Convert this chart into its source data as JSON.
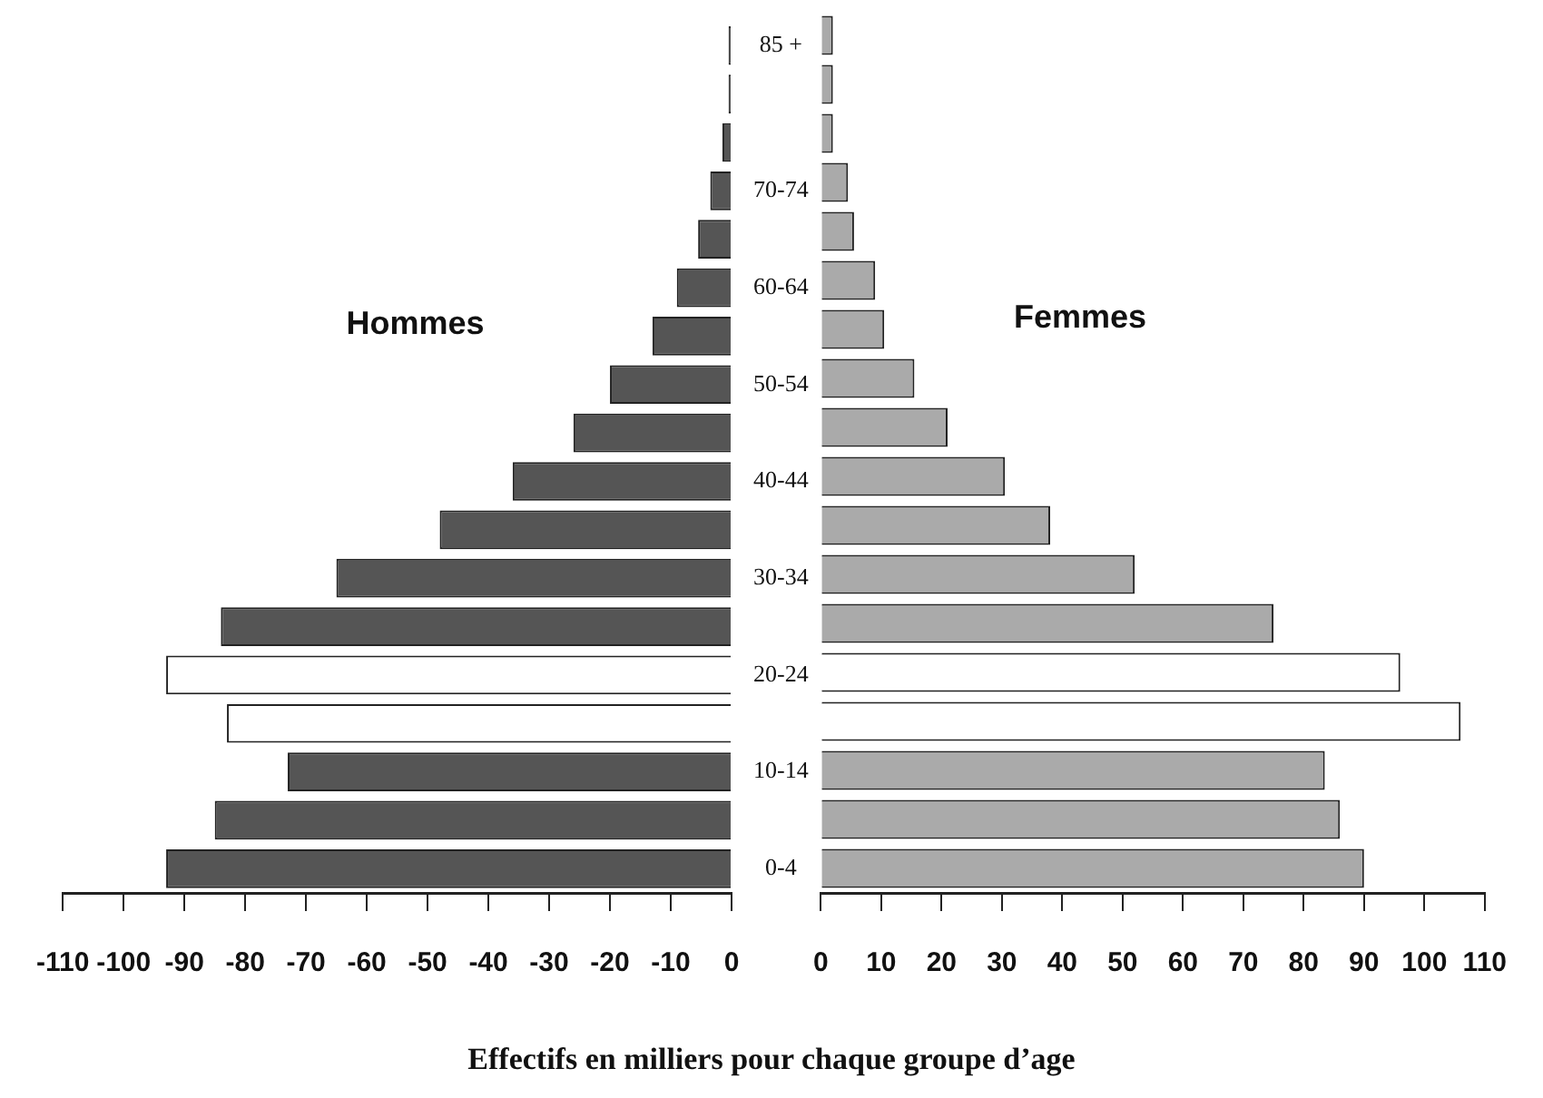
{
  "chart_data": [
    {
      "type": "bar",
      "orientation": "horizontal",
      "categories": [
        "85 +",
        null,
        null,
        "70-74",
        null,
        "60-64",
        null,
        "50-54",
        null,
        "40-44",
        null,
        "30-34",
        null,
        "20-24",
        null,
        "10-14",
        null,
        "0-4"
      ],
      "series": [
        {
          "name": "Hommes",
          "values": [
            -0.5,
            -0.5,
            -1.5,
            -3.5,
            -5.5,
            -9,
            -13,
            -20,
            -26,
            -36,
            -48,
            -65,
            -84,
            -93,
            -83,
            -73,
            -85,
            -93
          ],
          "colors": [
            "#555555",
            "#555555",
            "#555555",
            "#555555",
            "#555555",
            "#555555",
            "#555555",
            "#555555",
            "#555555",
            "#555555",
            "#555555",
            "#555555",
            "#555555",
            "#ffffff",
            "#ffffff",
            "#555555",
            "#555555",
            "#555555"
          ]
        }
      ],
      "xlim": [
        -110,
        0
      ],
      "xticks": [
        -110,
        -100,
        -90,
        -80,
        -70,
        -60,
        -50,
        -40,
        -30,
        -20,
        -10,
        0
      ],
      "legend": false,
      "grid": false
    },
    {
      "type": "bar",
      "orientation": "horizontal",
      "categories": [
        null,
        null,
        null,
        null,
        null,
        null,
        null,
        null,
        null,
        null,
        null,
        null,
        null,
        null,
        null,
        null,
        null,
        null
      ],
      "series": [
        {
          "name": "Femmes",
          "values": [
            2,
            2,
            2,
            4.5,
            5.5,
            9,
            10.5,
            15.5,
            21,
            30.5,
            38,
            52,
            75,
            96,
            106,
            83.5,
            86,
            90
          ],
          "colors": [
            "#aaaaaa",
            "#aaaaaa",
            "#aaaaaa",
            "#aaaaaa",
            "#aaaaaa",
            "#aaaaaa",
            "#aaaaaa",
            "#aaaaaa",
            "#aaaaaa",
            "#aaaaaa",
            "#aaaaaa",
            "#aaaaaa",
            "#aaaaaa",
            "#ffffff",
            "#ffffff",
            "#aaaaaa",
            "#aaaaaa",
            "#aaaaaa"
          ]
        }
      ],
      "xlim": [
        0,
        110
      ],
      "xticks": [
        0,
        10,
        20,
        30,
        40,
        50,
        60,
        70,
        80,
        90,
        100,
        110
      ],
      "tick_labels": "x",
      "xlabel": "Effectifs en milliers pour chaque groupe d’age",
      "legend": false,
      "grid": false
    }
  ]
}
